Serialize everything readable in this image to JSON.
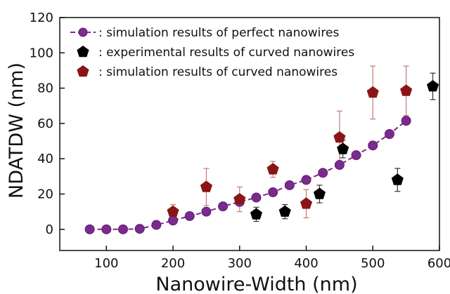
{
  "chart_data": {
    "type": "scatter",
    "title": "",
    "xlabel": "Nanowire-Width (nm)",
    "ylabel": "NDATDW (nm)",
    "xlim": [
      30,
      600
    ],
    "ylim": [
      -12,
      120
    ],
    "xticks": [
      100,
      200,
      300,
      400,
      500,
      600
    ],
    "yticks": [
      0,
      20,
      40,
      60,
      80,
      100,
      120
    ],
    "grid": false,
    "legend_position": "top-left",
    "series": [
      {
        "name": ": simulation results of perfect nanowires",
        "marker": "circle",
        "line": "dashed",
        "color": "#7b2a8e",
        "x": [
          75,
          100,
          125,
          150,
          175,
          200,
          225,
          250,
          275,
          300,
          325,
          350,
          375,
          400,
          425,
          450,
          475,
          500,
          525,
          550
        ],
        "y": [
          0,
          0,
          0,
          0.3,
          2.5,
          5,
          7.5,
          10,
          13,
          15.5,
          18,
          21,
          25,
          28,
          32,
          36.5,
          42,
          47.5,
          54,
          61.5
        ]
      },
      {
        "name": ": experimental results of curved nanowires",
        "marker": "pentagon",
        "line": "none",
        "color": "#000000",
        "error_color": "#333333",
        "x": [
          325,
          368,
          420,
          455,
          537,
          590
        ],
        "y": [
          8.5,
          10,
          20,
          45.5,
          28,
          81
        ],
        "error": [
          4,
          4,
          5,
          5,
          6.5,
          7.5
        ]
      },
      {
        "name": ": simulation results of curved nanowires",
        "marker": "pentagon",
        "line": "none",
        "color": "#8b1416",
        "error_color": "#c47a7a",
        "x": [
          200,
          250,
          300,
          350,
          400,
          450,
          500,
          550
        ],
        "y": [
          10,
          24,
          17,
          34,
          14.5,
          52,
          77.5,
          78.5
        ],
        "error": [
          4,
          10.5,
          7,
          4.5,
          8,
          15,
          15,
          14
        ]
      }
    ]
  }
}
